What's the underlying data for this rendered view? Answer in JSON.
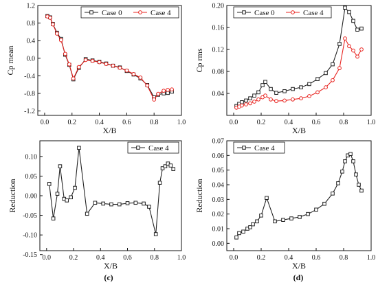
{
  "chart_data": [
    {
      "type": "line",
      "panel_label": "",
      "xlabel": "X/B",
      "ylabel": "Cp mean",
      "xlim": [
        -0.05,
        1.0
      ],
      "ylim": [
        -1.3,
        1.2
      ],
      "xticks": [
        "0.0",
        "0.2",
        "0.4",
        "0.6",
        "0.8",
        "1.0"
      ],
      "xtick_values": [
        0.0,
        0.2,
        0.4,
        0.6,
        0.8,
        1.0
      ],
      "yticks": [
        "-1.2",
        "-0.8",
        "-0.4",
        "0.0",
        "0.4",
        "0.8",
        "1.2"
      ],
      "ytick_values": [
        -1.2,
        -0.8,
        -0.4,
        0.0,
        0.4,
        0.8,
        1.2
      ],
      "legend_position": "top-right",
      "series": [
        {
          "name": "Case 0",
          "color": "#222222",
          "marker": "square",
          "x": [
            0.02,
            0.04,
            0.06,
            0.09,
            0.12,
            0.15,
            0.18,
            0.21,
            0.25,
            0.3,
            0.35,
            0.4,
            0.45,
            0.5,
            0.55,
            0.6,
            0.65,
            0.7,
            0.75,
            0.8,
            0.83,
            0.87,
            0.9,
            0.93
          ],
          "y": [
            0.96,
            0.93,
            0.78,
            0.58,
            0.44,
            0.08,
            -0.15,
            -0.48,
            -0.22,
            -0.02,
            -0.05,
            -0.08,
            -0.12,
            -0.17,
            -0.21,
            -0.29,
            -0.37,
            -0.46,
            -0.61,
            -0.89,
            -0.83,
            -0.8,
            -0.79,
            -0.76
          ]
        },
        {
          "name": "Case 4",
          "color": "#e8231f",
          "marker": "circle",
          "x": [
            0.02,
            0.04,
            0.06,
            0.09,
            0.12,
            0.15,
            0.18,
            0.21,
            0.25,
            0.3,
            0.35,
            0.4,
            0.45,
            0.5,
            0.55,
            0.6,
            0.65,
            0.7,
            0.75,
            0.8,
            0.83,
            0.87,
            0.9,
            0.93
          ],
          "y": [
            0.95,
            0.92,
            0.77,
            0.56,
            0.41,
            0.1,
            -0.14,
            -0.46,
            -0.2,
            -0.04,
            -0.06,
            -0.09,
            -0.13,
            -0.17,
            -0.22,
            -0.28,
            -0.36,
            -0.44,
            -0.62,
            -0.94,
            -0.81,
            -0.74,
            -0.72,
            -0.71
          ]
        }
      ]
    },
    {
      "type": "line",
      "panel_label": "",
      "xlabel": "X/B",
      "ylabel": "Cp rms",
      "xlim": [
        -0.05,
        1.0
      ],
      "ylim": [
        0.0,
        0.2
      ],
      "xticks": [
        "0.0",
        "0.2",
        "0.4",
        "0.6",
        "0.8",
        "1.0"
      ],
      "xtick_values": [
        0.0,
        0.2,
        0.4,
        0.6,
        0.8,
        1.0
      ],
      "yticks": [
        "0.04",
        "0.08",
        "0.12",
        "0.16",
        "0.20"
      ],
      "ytick_values": [
        0.04,
        0.08,
        0.12,
        0.16,
        0.2
      ],
      "legend_position": "top-right",
      "series": [
        {
          "name": "Case 0",
          "color": "#222222",
          "marker": "square",
          "x": [
            0.02,
            0.04,
            0.06,
            0.09,
            0.12,
            0.15,
            0.18,
            0.21,
            0.23,
            0.27,
            0.31,
            0.37,
            0.43,
            0.49,
            0.55,
            0.61,
            0.67,
            0.72,
            0.77,
            0.81,
            0.84,
            0.87,
            0.9,
            0.93
          ],
          "y": [
            0.017,
            0.021,
            0.024,
            0.027,
            0.031,
            0.036,
            0.042,
            0.055,
            0.061,
            0.048,
            0.041,
            0.044,
            0.048,
            0.051,
            0.057,
            0.066,
            0.077,
            0.093,
            0.13,
            0.196,
            0.188,
            0.172,
            0.156,
            0.158
          ]
        },
        {
          "name": "Case 4",
          "color": "#e8231f",
          "marker": "circle",
          "x": [
            0.02,
            0.04,
            0.06,
            0.09,
            0.12,
            0.15,
            0.18,
            0.21,
            0.23,
            0.27,
            0.31,
            0.37,
            0.43,
            0.49,
            0.55,
            0.61,
            0.67,
            0.72,
            0.77,
            0.81,
            0.84,
            0.87,
            0.9,
            0.93
          ],
          "y": [
            0.014,
            0.016,
            0.018,
            0.02,
            0.022,
            0.025,
            0.029,
            0.033,
            0.036,
            0.029,
            0.026,
            0.027,
            0.029,
            0.031,
            0.035,
            0.042,
            0.051,
            0.064,
            0.086,
            0.14,
            0.126,
            0.118,
            0.107,
            0.12
          ]
        }
      ]
    },
    {
      "type": "line",
      "panel_label": "(c)",
      "xlabel": "X/B",
      "ylabel": "Reduction",
      "xlim": [
        -0.05,
        1.0
      ],
      "ylim": [
        -0.14,
        0.14
      ],
      "xticks": [
        "0.0",
        "0.2",
        "0.4",
        "0.6",
        "0.8",
        "1.0"
      ],
      "xtick_values": [
        0.0,
        0.2,
        0.4,
        0.6,
        0.8,
        1.0
      ],
      "yticks": [
        "-0.15",
        "-0.10",
        "-0.05",
        "0.00",
        "0.05",
        "0.10"
      ],
      "ytick_values": [
        -0.15,
        -0.1,
        -0.05,
        0.0,
        0.05,
        0.1
      ],
      "legend_position": "top-right",
      "series": [
        {
          "name": "Case 4",
          "color": "#222222",
          "marker": "square",
          "x": [
            0.02,
            0.05,
            0.08,
            0.1,
            0.13,
            0.15,
            0.18,
            0.21,
            0.24,
            0.3,
            0.36,
            0.42,
            0.48,
            0.54,
            0.6,
            0.66,
            0.72,
            0.76,
            0.81,
            0.84,
            0.86,
            0.88,
            0.9,
            0.92,
            0.94
          ],
          "y": [
            0.03,
            -0.058,
            0.005,
            0.075,
            -0.008,
            -0.012,
            -0.004,
            0.02,
            0.122,
            -0.046,
            -0.018,
            -0.02,
            -0.022,
            -0.022,
            -0.019,
            -0.018,
            -0.02,
            -0.028,
            -0.098,
            0.033,
            0.07,
            0.075,
            0.082,
            0.077,
            0.068
          ]
        }
      ]
    },
    {
      "type": "line",
      "panel_label": "(d)",
      "xlabel": "X/B",
      "ylabel": "Reduction",
      "xlim": [
        -0.05,
        1.0
      ],
      "ylim": [
        -0.005,
        0.07
      ],
      "xticks": [
        "0.0",
        "0.2",
        "0.4",
        "0.6",
        "0.8",
        "1.0"
      ],
      "xtick_values": [
        0.0,
        0.2,
        0.4,
        0.6,
        0.8,
        1.0
      ],
      "yticks": [
        "0.00",
        "0.01",
        "0.02",
        "0.03",
        "0.04",
        "0.05",
        "0.06",
        "0.07"
      ],
      "ytick_values": [
        0.0,
        0.01,
        0.02,
        0.03,
        0.04,
        0.05,
        0.06,
        0.07
      ],
      "legend_position": "top-left",
      "series": [
        {
          "name": "Case 4",
          "color": "#222222",
          "marker": "square",
          "x": [
            0.02,
            0.04,
            0.07,
            0.1,
            0.12,
            0.14,
            0.17,
            0.2,
            0.24,
            0.3,
            0.36,
            0.42,
            0.48,
            0.54,
            0.6,
            0.66,
            0.72,
            0.76,
            0.79,
            0.81,
            0.83,
            0.85,
            0.87,
            0.89,
            0.91,
            0.93
          ],
          "y": [
            0.004,
            0.007,
            0.008,
            0.01,
            0.011,
            0.013,
            0.015,
            0.019,
            0.031,
            0.015,
            0.016,
            0.017,
            0.018,
            0.02,
            0.023,
            0.027,
            0.034,
            0.041,
            0.049,
            0.056,
            0.06,
            0.061,
            0.056,
            0.047,
            0.04,
            0.036
          ]
        }
      ]
    }
  ]
}
